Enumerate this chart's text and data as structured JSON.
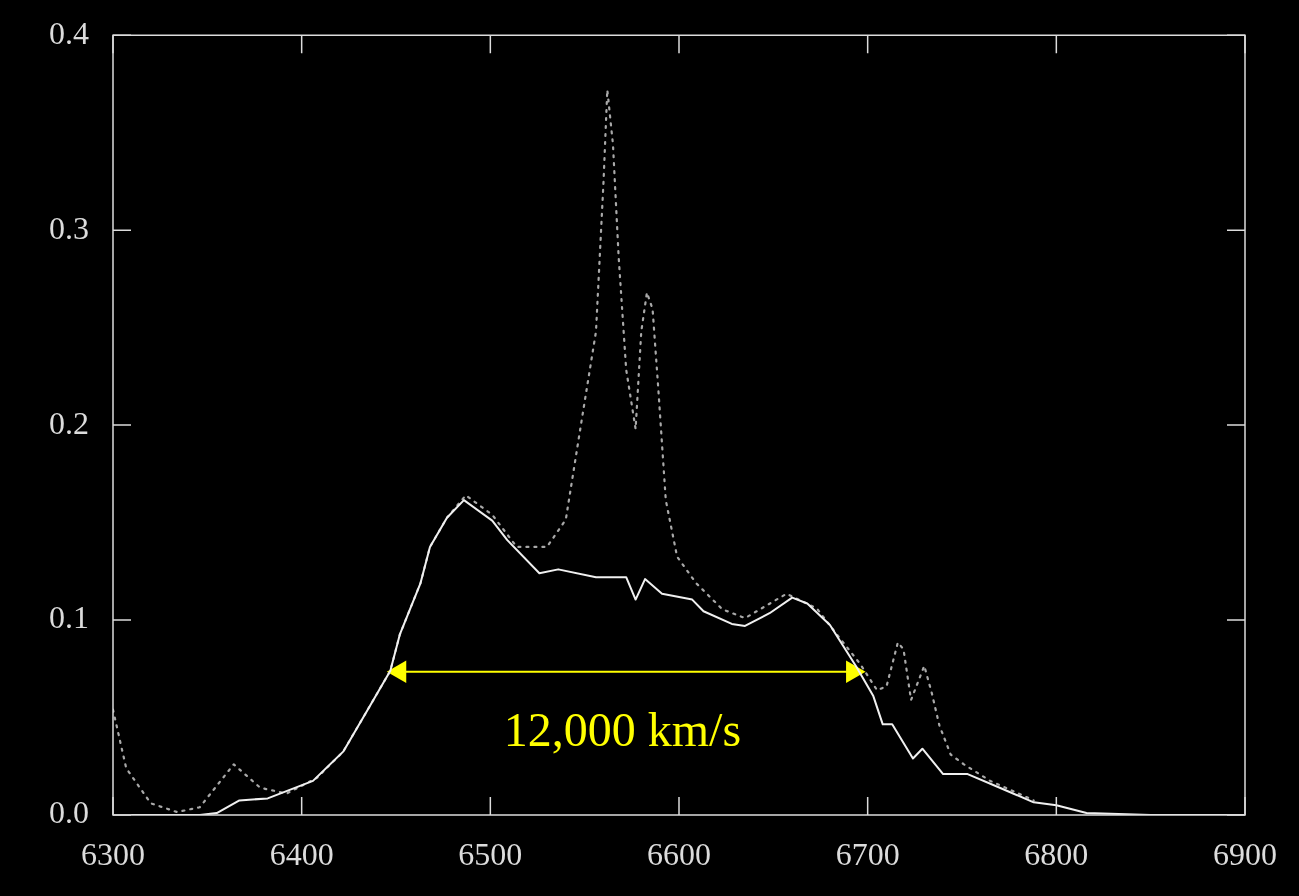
{
  "chart_data": {
    "type": "line",
    "xlim": [
      6300,
      6900
    ],
    "ylim": [
      0,
      0.4
    ],
    "xticks": [
      6300,
      6400,
      6500,
      6600,
      6700,
      6800,
      6900
    ],
    "yticks": [
      {
        "value": 0,
        "label": "0.0"
      },
      0.1,
      0.2,
      0.3,
      0.4
    ],
    "grid": false,
    "legend": false,
    "marker": "none",
    "series": [
      {
        "color": "#f0f0f0",
        "line_style": "solid",
        "x": [
          6310,
          6346,
          6355,
          6367,
          6382,
          6406,
          6422,
          6435,
          6447,
          6452,
          6463,
          6468,
          6477,
          6486,
          6501,
          6509,
          6526,
          6536,
          6556,
          6572,
          6577,
          6582,
          6591,
          6607,
          6613,
          6628,
          6635,
          6648,
          6660,
          6668,
          6680,
          6694,
          6703,
          6708,
          6713,
          6724,
          6729,
          6740,
          6753,
          6770,
          6788,
          6800,
          6816,
          6850,
          6894,
          6900
        ],
        "values": [
          0,
          0,
          0.001,
          0.0075,
          0.0085,
          0.0175,
          0.0325,
          0.054,
          0.074,
          0.0925,
          0.119,
          0.1375,
          0.1525,
          0.1615,
          0.151,
          0.141,
          0.124,
          0.126,
          0.122,
          0.122,
          0.1105,
          0.121,
          0.1135,
          0.1105,
          0.1045,
          0.098,
          0.097,
          0.1035,
          0.1115,
          0.1085,
          0.0975,
          0.076,
          0.061,
          0.0465,
          0.0465,
          0.029,
          0.034,
          0.021,
          0.021,
          0.014,
          0.0065,
          0.005,
          0.001,
          0,
          0,
          0
        ]
      },
      {
        "color": "#a8a8a8",
        "line_style": "dotted",
        "x": [
          6300,
          6307,
          6320,
          6334,
          6346,
          6364,
          6378,
          6392,
          6408,
          6422,
          6435,
          6447,
          6452,
          6463,
          6468,
          6477,
          6487,
          6501,
          6514,
          6530,
          6540,
          6548,
          6556,
          6560,
          6562,
          6565,
          6568,
          6572,
          6577,
          6580,
          6583,
          6586,
          6589,
          6593,
          6599,
          6609,
          6623,
          6635,
          6657,
          6673,
          6685,
          6696,
          6705,
          6710,
          6716,
          6719,
          6723,
          6730,
          6734,
          6738,
          6744,
          6751,
          6765,
          6788
        ],
        "values": [
          0.054,
          0.024,
          0.006,
          0.0015,
          0.004,
          0.026,
          0.014,
          0.011,
          0.019,
          0.0325,
          0.054,
          0.074,
          0.0925,
          0.119,
          0.1375,
          0.1525,
          0.164,
          0.154,
          0.1375,
          0.1375,
          0.1515,
          0.2,
          0.248,
          0.325,
          0.372,
          0.344,
          0.2865,
          0.2285,
          0.198,
          0.248,
          0.268,
          0.2595,
          0.219,
          0.1615,
          0.1325,
          0.119,
          0.1055,
          0.101,
          0.1135,
          0.106,
          0.091,
          0.0775,
          0.064,
          0.066,
          0.0885,
          0.085,
          0.059,
          0.0765,
          0.0625,
          0.046,
          0.031,
          0.026,
          0.0175,
          0.0075
        ]
      },
      {
        "color": "#ffff00",
        "line_style": "solid",
        "marker": "triangle",
        "x": [
          6452,
          6692
        ],
        "values": [
          0.0735,
          0.0735
        ]
      }
    ],
    "annotations": [
      "12,000 km/s"
    ]
  }
}
